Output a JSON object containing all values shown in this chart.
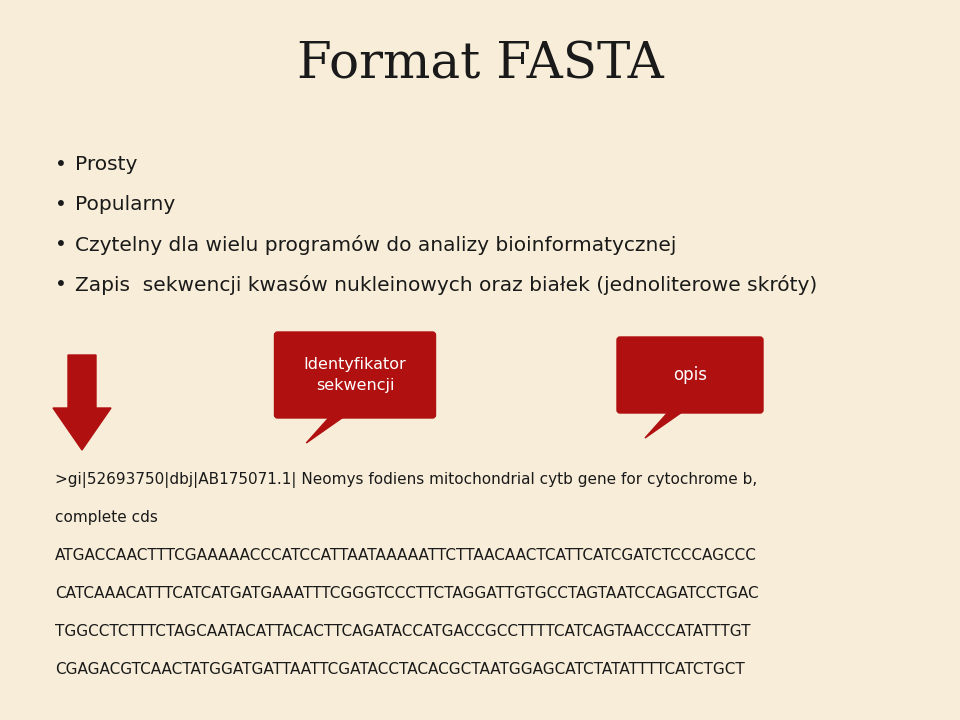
{
  "title": "Format FASTA",
  "background_color": "#f7edd8",
  "title_color": "#1a1a1a",
  "bullet_points": [
    "Prosty",
    "Popularny",
    "Czytelny dla wielu programów do analizy bioinformatycznej",
    "Zapis  sekwencji kwasów nukleinowych oraz białek (jednoliterowe skróty)"
  ],
  "bubble1_text": "Identyfikator\nsekwencji",
  "bubble2_text": "opis",
  "bubble_color": "#b01010",
  "bubble_text_color": "#ffffff",
  "arrow_color": "#b01010",
  "fasta_line1": ">gi|52693750|dbj|AB175071.1| Neomys fodiens mitochondrial cytb gene for cytochrome b,",
  "fasta_line2": "complete cds",
  "fasta_line3": "ATGACCAACTTTCGAAAAACCCATCCATTAATAAAAATTCTTAACAACTCATTCATCGATCTCCCAGCCC",
  "fasta_line4": "CATCAAACATTTCATCATGATGAAATTTCGGGTCCCTTCTAGGATTGTGCCTAGTAATCCAGATCCTGAC",
  "fasta_line5": "TGGCCTCTTTCTAGCAATACATTACACTTCAGATACCATGACCGCCTTTTCATCAGTAACCCATATTTGT",
  "fasta_line6": "CGAGACGTCAACTATGGATGATTAATTCGATACCTACACGCTAATGGAGCATCTATATTTTCATCTGCT",
  "text_color": "#1a1a1a"
}
